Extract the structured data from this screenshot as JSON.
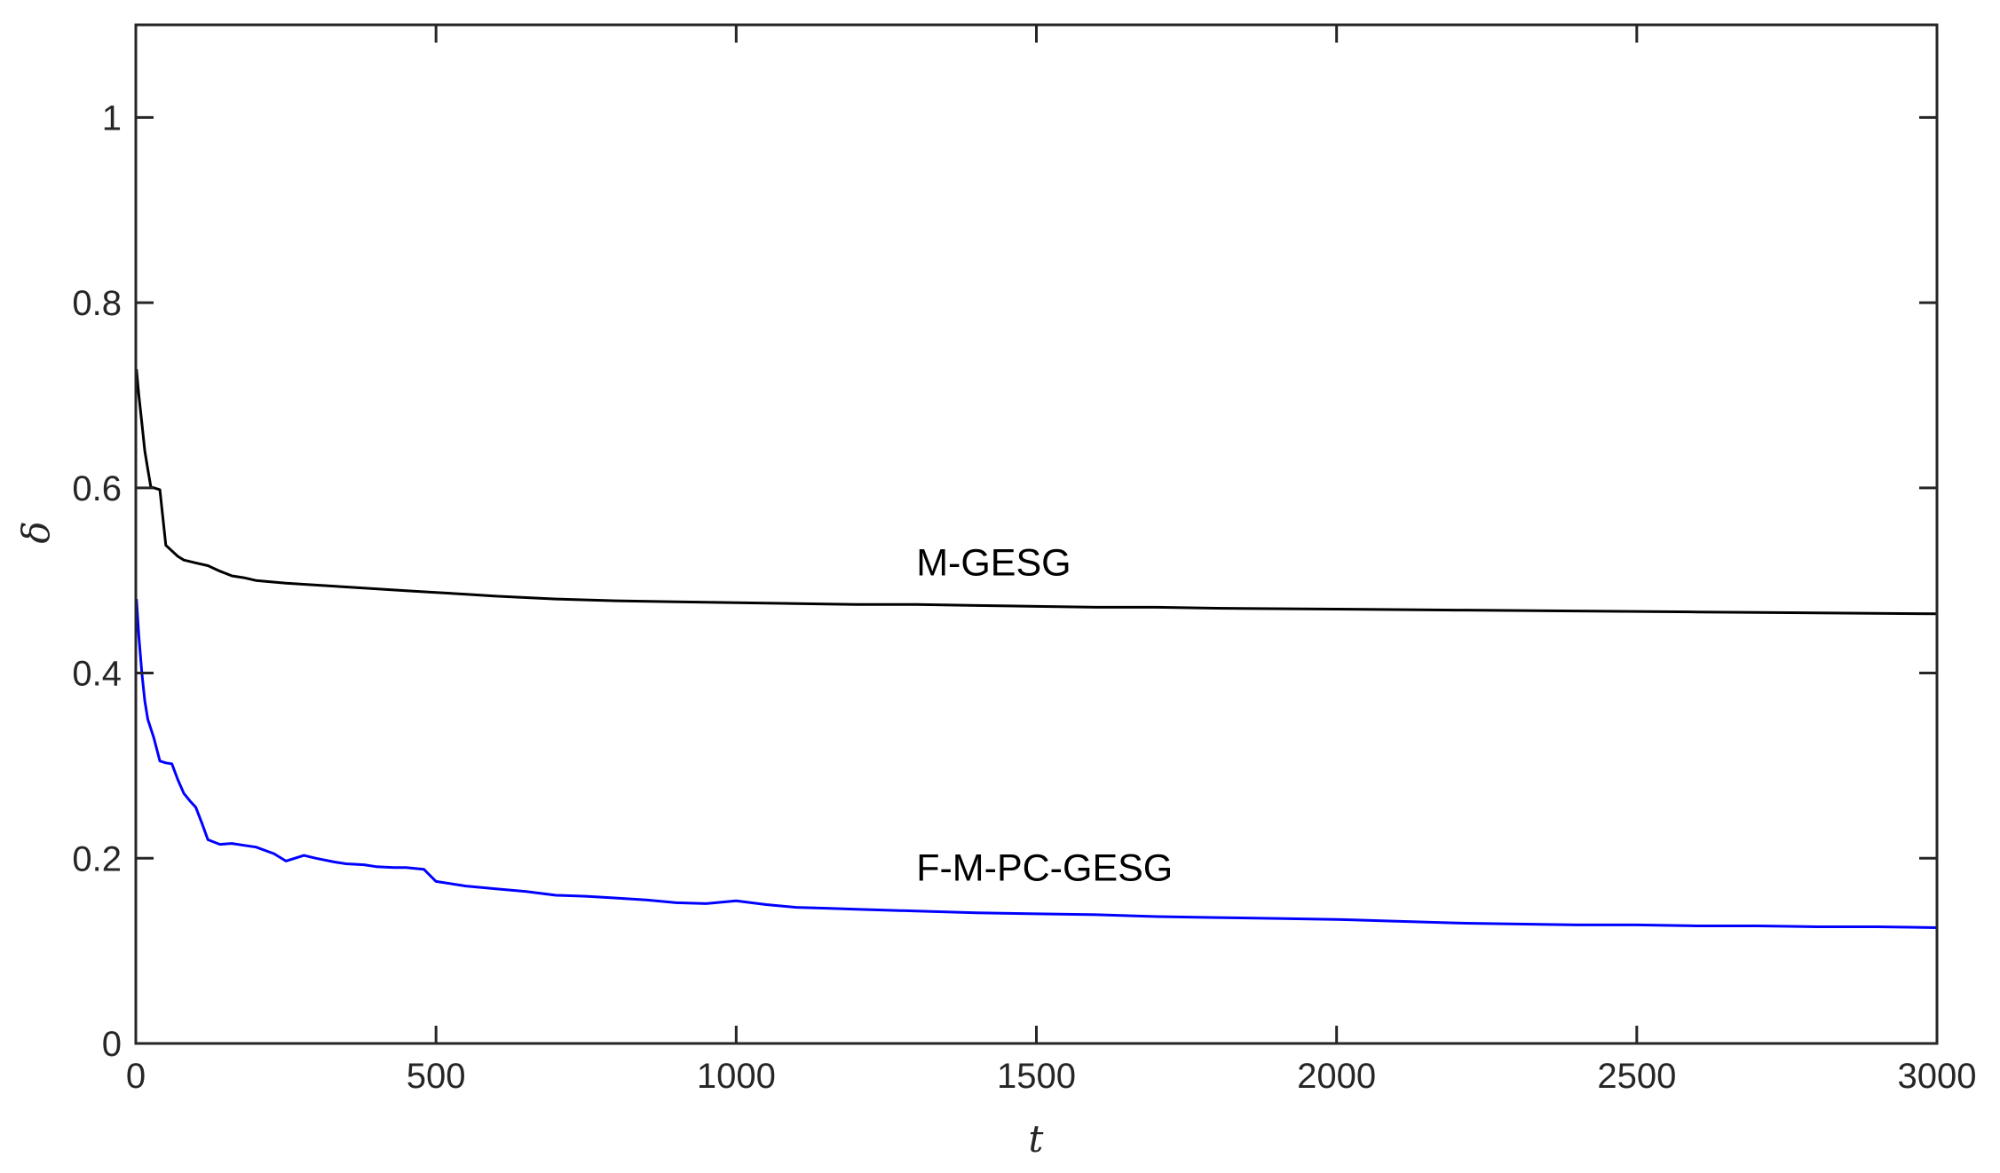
{
  "chart_data": {
    "type": "line",
    "title": "",
    "xlabel": "t",
    "ylabel": "δ",
    "xlim": [
      0,
      3000
    ],
    "ylim": [
      0,
      1.1
    ],
    "xticks": [
      0,
      500,
      1000,
      1500,
      2000,
      2500,
      3000
    ],
    "xtick_labels": [
      "0",
      "500",
      "1000",
      "1500",
      "2000",
      "2500",
      "3000"
    ],
    "yticks": [
      0,
      0.2,
      0.4,
      0.6,
      0.8,
      1
    ],
    "ytick_labels": [
      "0",
      "0.2",
      "0.4",
      "0.6",
      "0.8",
      "1"
    ],
    "grid": false,
    "legend": "none",
    "series": [
      {
        "name": "M-GESG",
        "color": "#000000",
        "label_at": [
          1300,
          0.52
        ],
        "x": [
          1,
          5,
          10,
          15,
          20,
          25,
          30,
          40,
          50,
          60,
          70,
          80,
          100,
          120,
          140,
          160,
          180,
          200,
          250,
          300,
          350,
          400,
          450,
          500,
          550,
          600,
          700,
          800,
          900,
          1000,
          1100,
          1200,
          1300,
          1400,
          1500,
          1600,
          1700,
          1800,
          2000,
          2200,
          2400,
          2600,
          2800,
          3000
        ],
        "y": [
          0.728,
          0.7,
          0.67,
          0.64,
          0.62,
          0.601,
          0.6,
          0.598,
          0.538,
          0.532,
          0.526,
          0.522,
          0.519,
          0.516,
          0.51,
          0.505,
          0.503,
          0.5,
          0.497,
          0.495,
          0.493,
          0.491,
          0.489,
          0.487,
          0.485,
          0.483,
          0.48,
          0.478,
          0.477,
          0.476,
          0.475,
          0.474,
          0.474,
          0.473,
          0.472,
          0.471,
          0.471,
          0.47,
          0.469,
          0.468,
          0.467,
          0.466,
          0.465,
          0.464
        ]
      },
      {
        "name": "F-M-PC-GESG",
        "color": "#0000ff",
        "label_at": [
          1300,
          0.19
        ],
        "x": [
          1,
          5,
          10,
          15,
          20,
          25,
          30,
          40,
          50,
          60,
          70,
          80,
          90,
          100,
          110,
          120,
          140,
          160,
          180,
          200,
          230,
          250,
          280,
          300,
          330,
          350,
          380,
          400,
          430,
          450,
          480,
          500,
          550,
          600,
          650,
          700,
          750,
          800,
          850,
          900,
          950,
          1000,
          1050,
          1100,
          1150,
          1200,
          1300,
          1400,
          1500,
          1600,
          1700,
          1800,
          1900,
          2000,
          2100,
          2200,
          2300,
          2400,
          2500,
          2600,
          2700,
          2800,
          2900,
          3000
        ],
        "y": [
          0.48,
          0.44,
          0.4,
          0.37,
          0.35,
          0.34,
          0.33,
          0.305,
          0.303,
          0.302,
          0.285,
          0.27,
          0.262,
          0.255,
          0.238,
          0.22,
          0.215,
          0.216,
          0.214,
          0.212,
          0.205,
          0.197,
          0.203,
          0.2,
          0.196,
          0.194,
          0.193,
          0.191,
          0.19,
          0.19,
          0.188,
          0.175,
          0.17,
          0.167,
          0.164,
          0.16,
          0.159,
          0.157,
          0.155,
          0.152,
          0.151,
          0.154,
          0.15,
          0.147,
          0.146,
          0.145,
          0.143,
          0.141,
          0.14,
          0.139,
          0.137,
          0.136,
          0.135,
          0.134,
          0.132,
          0.13,
          0.129,
          0.128,
          0.128,
          0.127,
          0.127,
          0.126,
          0.126,
          0.125
        ]
      }
    ]
  }
}
